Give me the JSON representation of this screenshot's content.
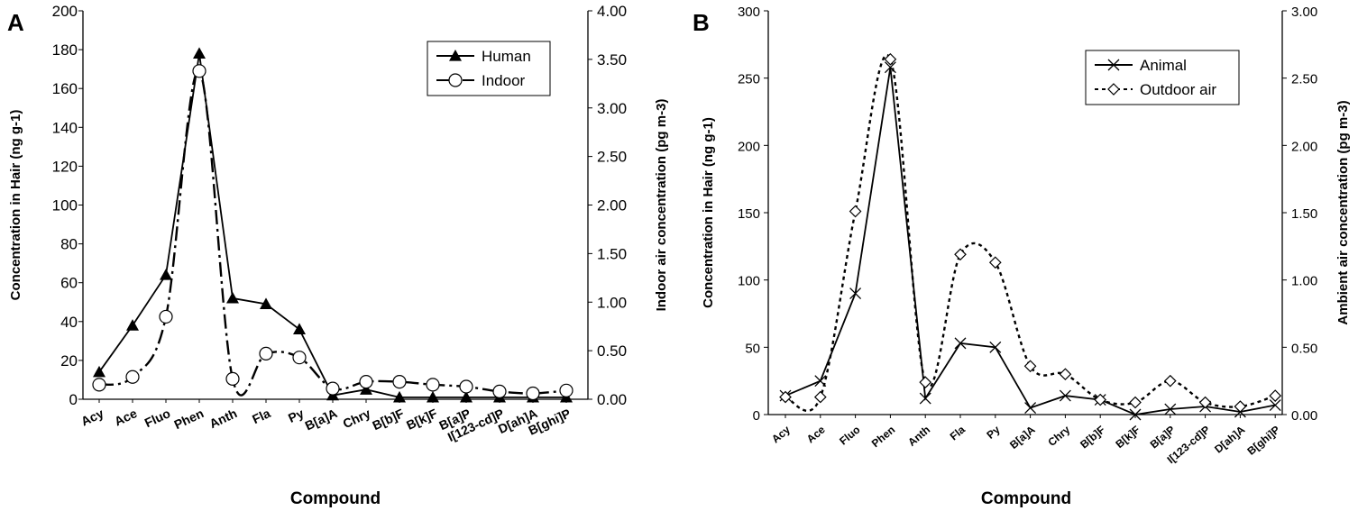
{
  "chart_data": [
    {
      "panel": "A",
      "type": "line",
      "xlabel": "Compound",
      "ylabel": "Concentration in Hair (ng g-1)",
      "y2label": "Indoor air concentration (pg m-3)",
      "categories": [
        "Acy",
        "Ace",
        "Fluo",
        "Phen",
        "Anth",
        "Fla",
        "Py",
        "B[a]A",
        "Chry",
        "B[b]F",
        "B[k]F",
        "B[a]P",
        "I[123-cd]P",
        "D[ah]A",
        "B[ghi]P"
      ],
      "ylim": [
        0,
        200
      ],
      "yticks": [
        "0",
        "20",
        "40",
        "60",
        "80",
        "100",
        "120",
        "140",
        "160",
        "180",
        "200"
      ],
      "y2lim": [
        0,
        4
      ],
      "y2ticks": [
        "0.00",
        "0.50",
        "1.00",
        "1.50",
        "2.00",
        "2.50",
        "3.00",
        "3.50",
        "4.00"
      ],
      "legend_position": "top-right",
      "series": [
        {
          "name": "Human",
          "axis": "left",
          "marker": "filled-triangle",
          "line": "solid",
          "values": [
            14,
            38,
            64,
            178,
            52,
            49,
            36,
            2,
            5,
            1,
            1,
            1,
            1,
            1,
            1
          ]
        },
        {
          "name": "Indoor",
          "axis": "right",
          "marker": "open-circle",
          "line": "dash-dot",
          "values": [
            0.15,
            0.23,
            0.85,
            3.38,
            0.21,
            0.47,
            0.43,
            0.11,
            0.18,
            0.18,
            0.15,
            0.13,
            0.08,
            0.06,
            0.09
          ]
        }
      ]
    },
    {
      "panel": "B",
      "type": "line",
      "xlabel": "Compound",
      "ylabel": "Concentration in Hair (ng g-1)",
      "y2label": "Ambient air concentration (pg m-3)",
      "categories": [
        "Acy",
        "Ace",
        "Fluo",
        "Phen",
        "Anth",
        "Fla",
        "Py",
        "B[a]A",
        "Chry",
        "B[b]F",
        "B[k]F",
        "B[a]P",
        "I[123-cd]P",
        "D[ah]A",
        "B[ghi]P"
      ],
      "ylim": [
        0,
        300
      ],
      "yticks": [
        "0",
        "50",
        "100",
        "150",
        "200",
        "250",
        "300"
      ],
      "y2lim": [
        0,
        3
      ],
      "y2ticks": [
        "0.00",
        "0.50",
        "1.00",
        "1.50",
        "2.00",
        "2.50",
        "3.00"
      ],
      "legend_position": "top-right",
      "series": [
        {
          "name": "Animal",
          "axis": "left",
          "marker": "cross",
          "line": "solid",
          "values": [
            14,
            25,
            90,
            258,
            12,
            53,
            50,
            5,
            14,
            11,
            0,
            4,
            6,
            2,
            7
          ]
        },
        {
          "name": "Outdoor air",
          "axis": "right",
          "marker": "open-diamond",
          "line": "dotted",
          "values": [
            0.13,
            0.13,
            1.51,
            2.64,
            0.24,
            1.19,
            1.13,
            0.36,
            0.3,
            0.11,
            0.09,
            0.25,
            0.09,
            0.06,
            0.14
          ]
        }
      ]
    }
  ]
}
